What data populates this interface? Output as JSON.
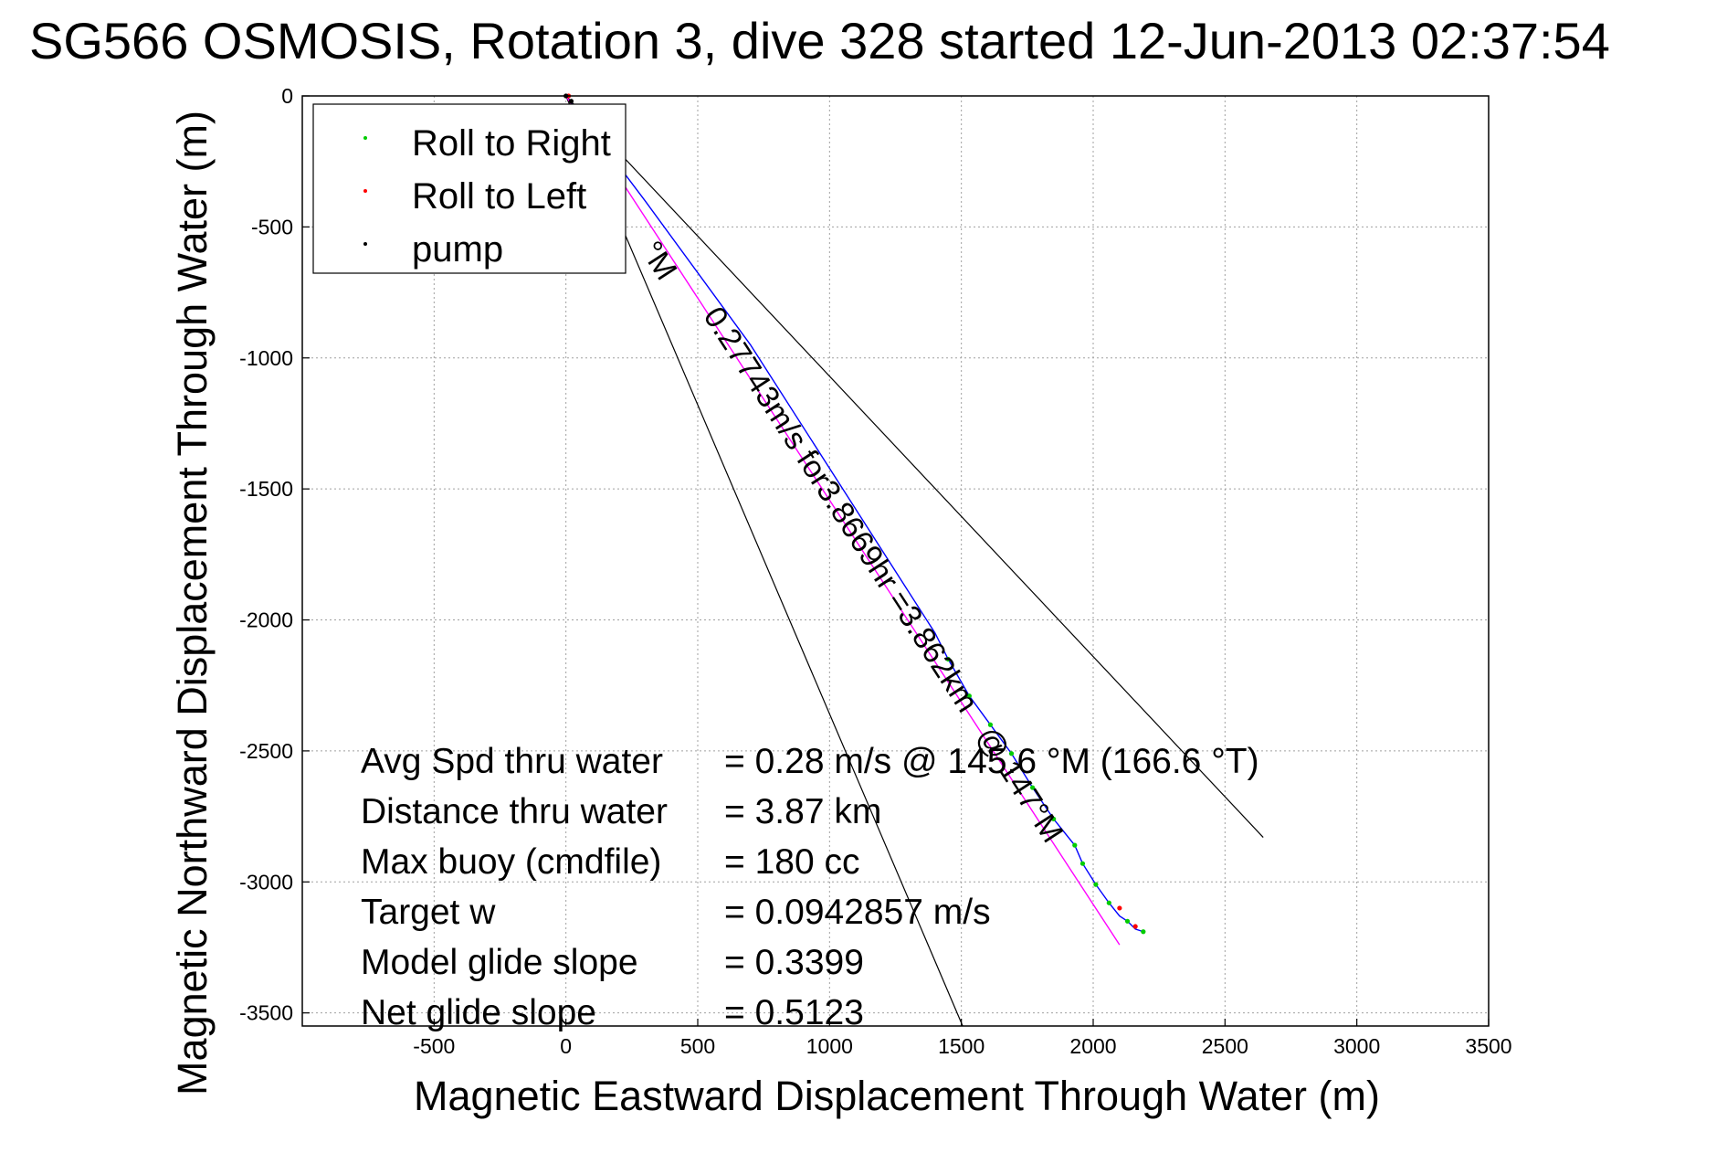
{
  "chart_data": {
    "type": "line",
    "title": "SG566 OSMOSIS, Rotation 3, dive 328 started 12-Jun-2013 02:37:54",
    "xlabel": "Magnetic Eastward Displacement Through Water (m)",
    "ylabel": "Magnetic Northward Displacement Through Water (m)",
    "xlim": [
      -1000,
      3500
    ],
    "ylim": [
      -3550,
      0
    ],
    "xticks": [
      -500,
      0,
      500,
      1000,
      1500,
      2000,
      2500,
      3000,
      3500
    ],
    "yticks": [
      0,
      -500,
      -1000,
      -1500,
      -2000,
      -2500,
      -3000,
      -3500
    ],
    "grid": true,
    "legend": {
      "placement": "top-left",
      "entries": [
        {
          "label": "Roll to Right",
          "color": "#00cc00"
        },
        {
          "label": "Roll to Left",
          "color": "#ff0000"
        },
        {
          "label": "pump",
          "color": "#000000"
        }
      ]
    },
    "series": [
      {
        "name": "track",
        "color": "#0000ff",
        "x": [
          0,
          300,
          700,
          1050,
          1400,
          1450,
          1530,
          1610,
          1690,
          1770,
          1850,
          1930,
          1960,
          2010,
          2060,
          2100,
          2130,
          2160,
          2190
        ],
        "y": [
          0,
          -400,
          -950,
          -1500,
          -2050,
          -2150,
          -2290,
          -2400,
          -2510,
          -2640,
          -2760,
          -2860,
          -2930,
          -3010,
          -3080,
          -3130,
          -3150,
          -3180,
          -3190
        ]
      },
      {
        "name": "model heading",
        "color": "#ff00ff",
        "x": [
          0,
          2100
        ],
        "y": [
          0,
          -3240
        ]
      }
    ],
    "cone_lines": [
      {
        "x": [
          0,
          1505
        ],
        "y": [
          0,
          -3550
        ]
      },
      {
        "x": [
          0,
          2645
        ],
        "y": [
          0,
          -2830
        ]
      }
    ],
    "roll_right_points": {
      "x": [
        1450,
        1530,
        1610,
        1690,
        1770,
        1850,
        1930,
        1960,
        2010,
        2060,
        2130,
        2190
      ],
      "y": [
        -2150,
        -2290,
        -2400,
        -2510,
        -2640,
        -2760,
        -2860,
        -2930,
        -3010,
        -3080,
        -3150,
        -3190
      ]
    },
    "roll_left_points": {
      "x": [
        10,
        2100,
        2160
      ],
      "y": [
        0,
        -3100,
        -3170
      ]
    },
    "pump_points": {
      "x": [
        0,
        20
      ],
      "y": [
        0,
        -20
      ]
    },
    "annotations": [
      {
        "text": "0.27743m/s for3.8669hr =3.862km",
        "x": 1010,
        "y": -1600,
        "angle": 57
      },
      {
        "text": "°M",
        "x": 320,
        "y": -650,
        "angle": 57
      },
      {
        "text": "@ 147°M",
        "x": 1690,
        "y": -2650,
        "angle": 57
      }
    ],
    "stats": [
      {
        "label": "Avg Spd thru water",
        "value": "=  0.28 m/s @ 145.6 °M (166.6 °T)"
      },
      {
        "label": "Distance thru water",
        "value": "=  3.87 km"
      },
      {
        "label": "Max buoy (cmdfile)",
        "value": "= 180 cc"
      },
      {
        "label": "Target w",
        "value": "= 0.0942857 m/s"
      },
      {
        "label": "Model glide slope",
        "value": "= 0.3399"
      },
      {
        "label": "Net glide slope",
        "value": "= 0.5123"
      }
    ]
  }
}
